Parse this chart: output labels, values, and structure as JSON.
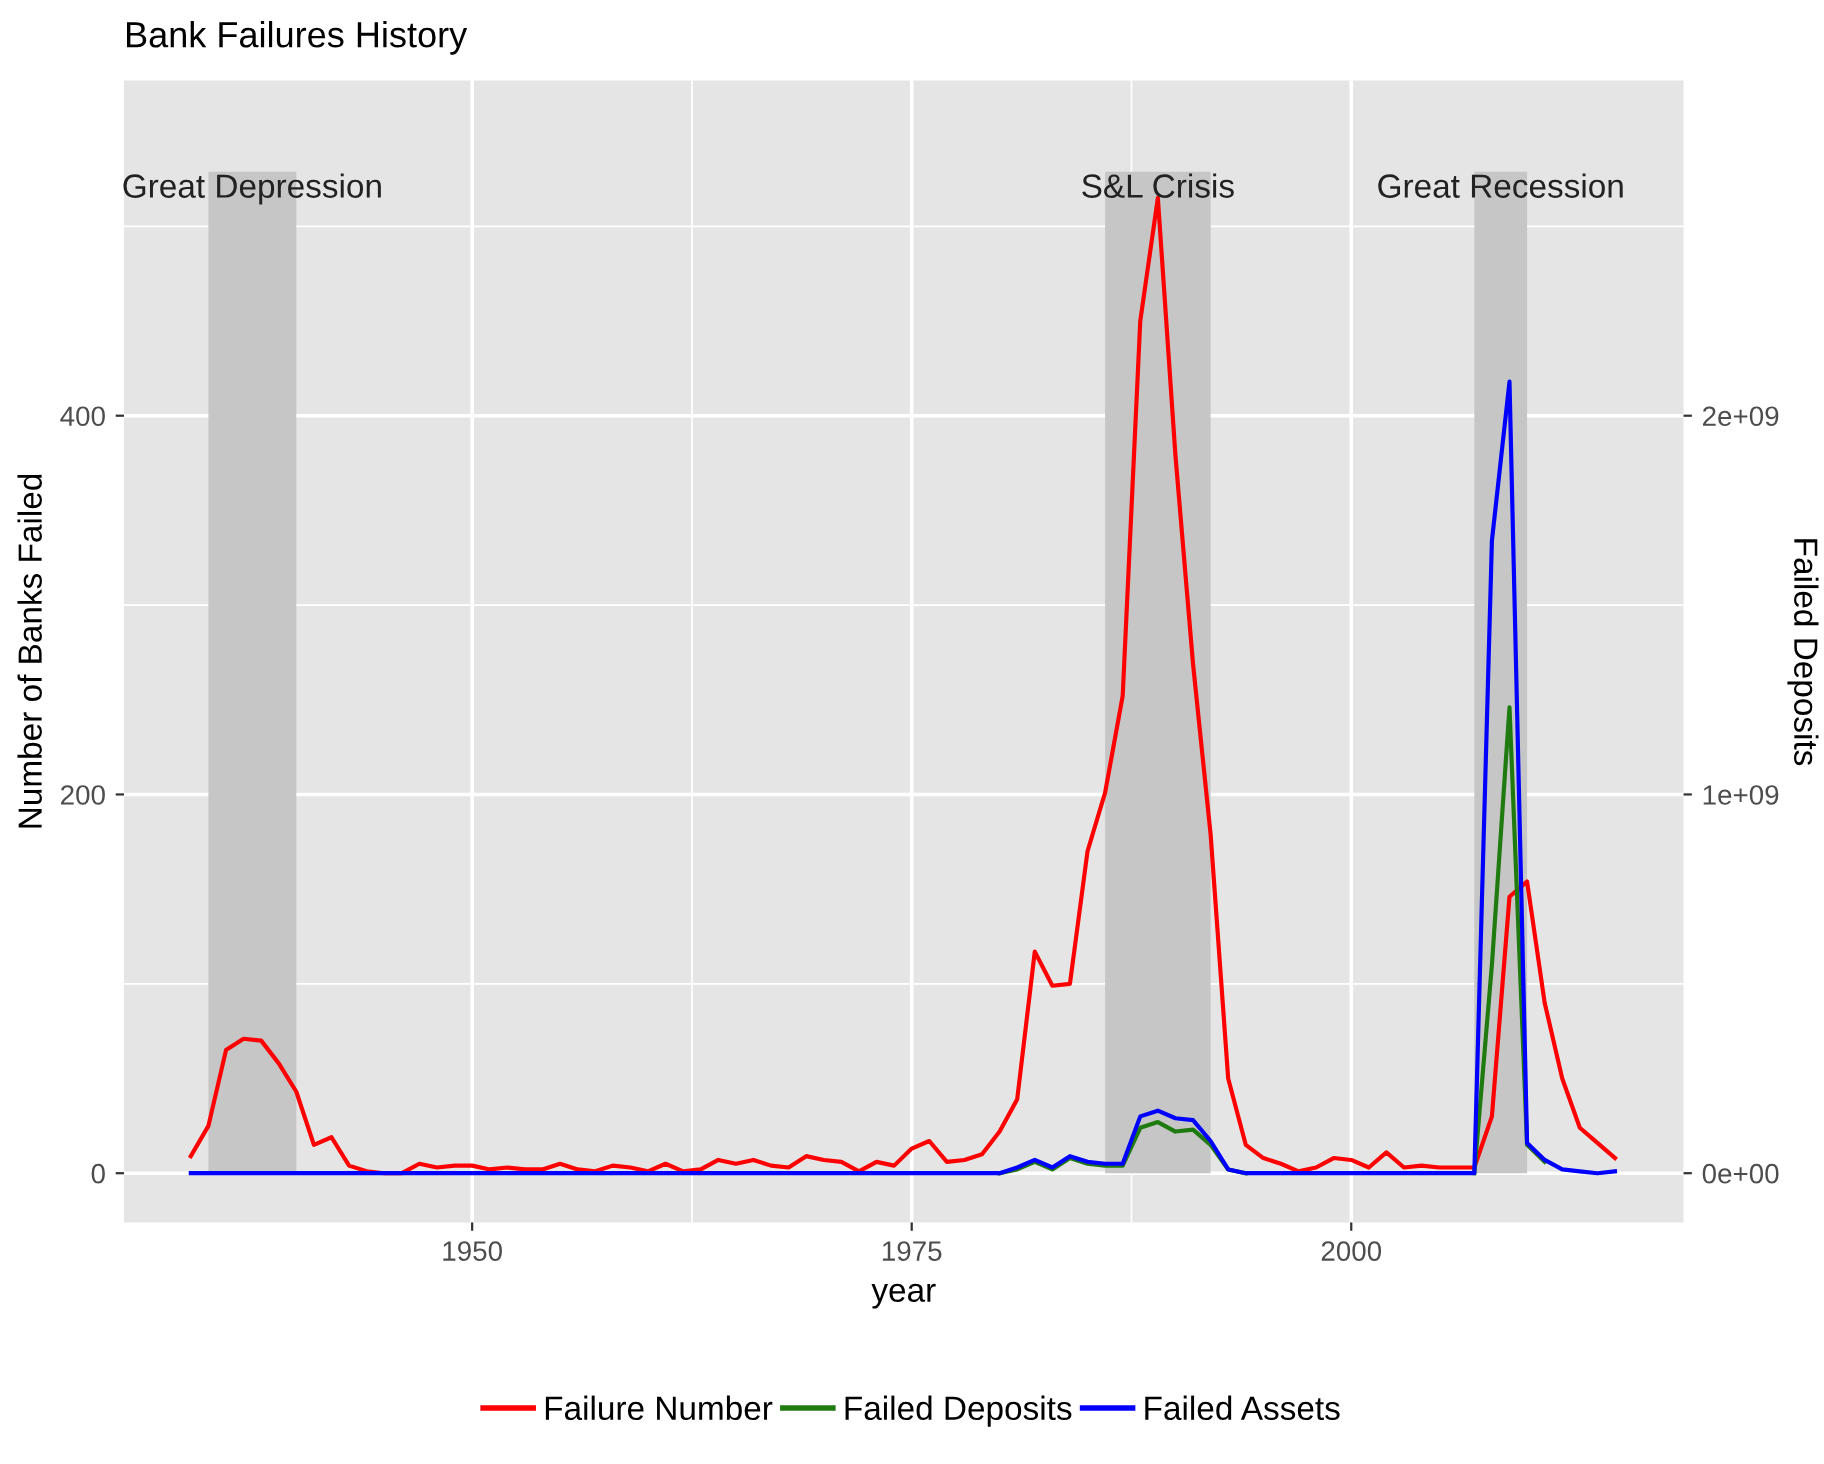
{
  "chart_data": {
    "type": "line",
    "title": "Bank Failures History",
    "xlabel": "year",
    "ylabel": "Number of Banks Failed",
    "y2label": "Failed Deposits",
    "x": [
      1934,
      1935,
      1936,
      1937,
      1938,
      1939,
      1940,
      1941,
      1942,
      1943,
      1944,
      1945,
      1946,
      1947,
      1948,
      1949,
      1950,
      1951,
      1952,
      1953,
      1954,
      1955,
      1956,
      1957,
      1958,
      1959,
      1960,
      1961,
      1962,
      1963,
      1964,
      1965,
      1966,
      1967,
      1968,
      1969,
      1970,
      1971,
      1972,
      1973,
      1974,
      1975,
      1976,
      1977,
      1978,
      1979,
      1980,
      1981,
      1982,
      1983,
      1984,
      1985,
      1986,
      1987,
      1988,
      1989,
      1990,
      1991,
      1992,
      1993,
      1994,
      1995,
      1996,
      1997,
      1998,
      1999,
      2000,
      2001,
      2002,
      2003,
      2004,
      2005,
      2006,
      2007,
      2008,
      2009,
      2010,
      2011,
      2012,
      2013,
      2014,
      2015
    ],
    "series": [
      {
        "name": "Failure Number",
        "color": "#ff0000",
        "values": [
          9,
          25,
          65,
          71,
          70,
          58,
          43,
          15,
          19,
          4,
          1,
          0,
          0,
          5,
          3,
          4,
          4,
          2,
          3,
          2,
          2,
          5,
          2,
          1,
          4,
          3,
          1,
          5,
          1,
          2,
          7,
          5,
          7,
          4,
          3,
          9,
          7,
          6,
          1,
          6,
          4,
          13,
          17,
          6,
          7,
          10,
          22,
          39,
          117,
          99,
          100,
          170,
          201,
          252,
          450,
          515,
          379,
          269,
          179,
          50,
          15,
          8,
          5,
          1,
          3,
          8,
          7,
          3,
          11,
          3,
          4,
          3,
          3,
          3,
          30,
          146,
          154,
          90,
          50,
          24,
          16,
          8
        ]
      },
      {
        "name": "Failed Deposits",
        "color": "#1f7a0f",
        "axis": "y2",
        "values": [
          null,
          null,
          null,
          null,
          null,
          null,
          null,
          null,
          null,
          null,
          null,
          null,
          null,
          null,
          null,
          null,
          null,
          null,
          null,
          null,
          null,
          null,
          null,
          null,
          null,
          null,
          null,
          null,
          null,
          null,
          null,
          null,
          null,
          null,
          null,
          null,
          null,
          null,
          null,
          null,
          null,
          null,
          null,
          null,
          null,
          null,
          0,
          10000000.0,
          30000000.0,
          10000000.0,
          40000000.0,
          25000000.0,
          20000000.0,
          20000000.0,
          120000000.0,
          135000000.0,
          110000000.0,
          115000000.0,
          75000000.0,
          10000000.0,
          0,
          null,
          null,
          null,
          null,
          null,
          null,
          null,
          null,
          null,
          null,
          null,
          null,
          0,
          550000000.0,
          1230000000.0,
          75000000.0,
          30000000.0,
          null,
          null,
          null,
          null
        ]
      },
      {
        "name": "Failed Assets",
        "color": "#0000ff",
        "axis": "y2",
        "values": [
          0,
          0,
          0,
          0,
          0,
          0,
          0,
          0,
          0,
          0,
          0,
          0,
          0,
          0,
          0,
          0,
          0,
          0,
          0,
          0,
          0,
          0,
          0,
          0,
          0,
          0,
          0,
          0,
          0,
          0,
          0,
          0,
          0,
          0,
          0,
          0,
          0,
          0,
          0,
          0,
          0,
          0,
          0,
          0,
          0,
          0,
          0,
          15000000.0,
          35000000.0,
          15000000.0,
          45000000.0,
          30000000.0,
          25000000.0,
          25000000.0,
          150000000.0,
          165000000.0,
          145000000.0,
          140000000.0,
          85000000.0,
          10000000.0,
          0,
          0,
          0,
          0,
          0,
          0,
          0,
          0,
          0,
          0,
          0,
          0,
          0,
          0,
          1670000000.0,
          2090000000.0,
          80000000.0,
          35000000.0,
          10000000.0,
          5000000.0,
          0,
          5000000.0
        ]
      }
    ],
    "bands": [
      {
        "axis": "x",
        "from": 1935,
        "to": 1940,
        "label": "Great Depression",
        "color": "#c6c6c6"
      },
      {
        "axis": "x",
        "from": 1986,
        "to": 1992,
        "label": "S&L Crisis",
        "color": "#c6c6c6"
      },
      {
        "axis": "x",
        "from": 2007,
        "to": 2010,
        "label": "Great Recession",
        "color": "#c6c6c6"
      }
    ],
    "xlim": [
      1930.2,
      2018.9
    ],
    "xticks": [
      1950,
      1975,
      2000
    ],
    "ylim": [
      -26,
      577
    ],
    "yticks": [
      0,
      200,
      400
    ],
    "y2lim": [
      -130000000.0,
      2885000000.0
    ],
    "y2ticks": [
      {
        "value": 0,
        "label": "0e+00"
      },
      {
        "value": 1000000000.0,
        "label": "1e+09"
      },
      {
        "value": 2000000000.0,
        "label": "2e+09"
      }
    ],
    "grid": true,
    "legend": "bottom"
  }
}
